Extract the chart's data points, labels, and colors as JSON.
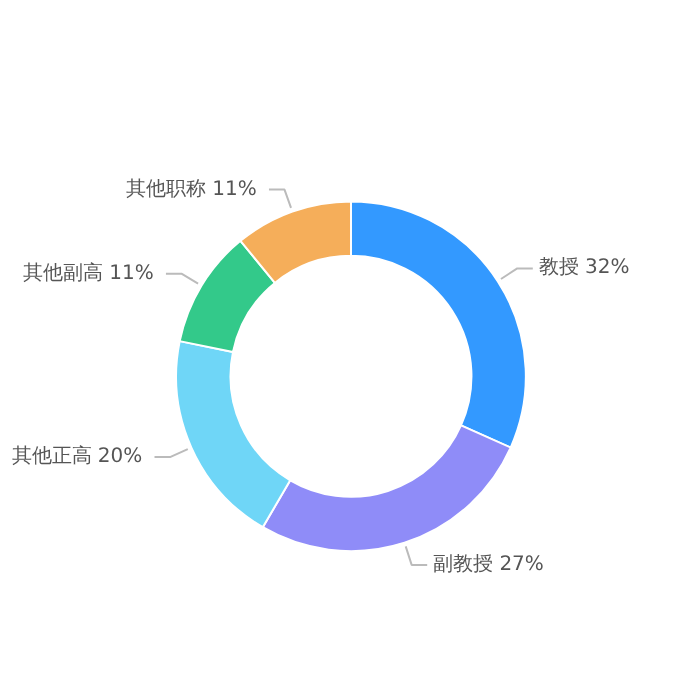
{
  "chart_data": {
    "type": "donut",
    "categories": [
      "教授",
      "副教授",
      "其他正高",
      "其他副高",
      "其他职称"
    ],
    "values": [
      32,
      27,
      20,
      11,
      11
    ],
    "value_labels": [
      "32%",
      "27%",
      "20%",
      "11%",
      "11%"
    ],
    "colors": [
      "#3399ff",
      "#8f8cf8",
      "#6fd6f7",
      "#33c98a",
      "#f5ae5a"
    ]
  }
}
